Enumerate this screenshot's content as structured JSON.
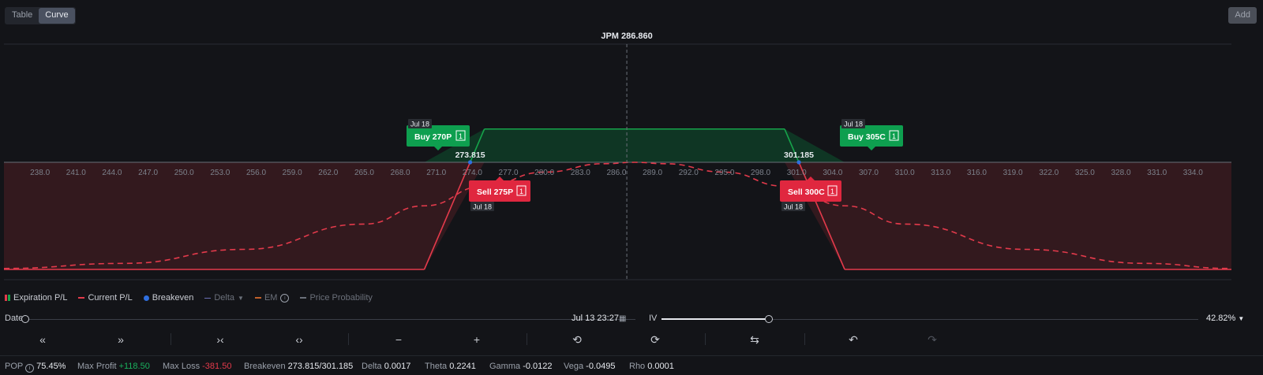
{
  "view_toggle": {
    "table_label": "Table",
    "curve_label": "Curve",
    "active": "Curve"
  },
  "add_label": "Add",
  "chart": {
    "underlying_label": "JPM 286.860",
    "x_ticks": [
      "238.0",
      "241.0",
      "244.0",
      "247.0",
      "250.0",
      "253.0",
      "256.0",
      "259.0",
      "262.0",
      "265.0",
      "268.0",
      "271.0",
      "274.0",
      "277.0",
      "280.0",
      "283.0",
      "286.0",
      "289.0",
      "292.0",
      "295.0",
      "298.0",
      "301.0",
      "304.0",
      "307.0",
      "310.0",
      "313.0",
      "316.0",
      "319.0",
      "322.0",
      "325.0",
      "328.0",
      "331.0",
      "334.0"
    ],
    "breakeven_left": "273.815",
    "breakeven_right": "301.185",
    "legs": [
      {
        "label": "Buy 270P",
        "qty": "1",
        "date": "Jul 18",
        "side": "buy"
      },
      {
        "label": "Buy 305C",
        "qty": "1",
        "date": "Jul 18",
        "side": "buy"
      },
      {
        "label": "Sell 275P",
        "qty": "1",
        "date": "Jul 18",
        "side": "sell"
      },
      {
        "label": "Sell 300C",
        "qty": "1",
        "date": "Jul 18",
        "side": "sell"
      }
    ],
    "colors": {
      "profit": "#16a34a",
      "loss": "#e33a4b",
      "breakeven": "#2f6fe0",
      "background": "#131418"
    }
  },
  "chart_data": {
    "type": "line",
    "xlim": [
      235.0,
      337.2
    ],
    "x_axis_ticks": [
      238,
      241,
      244,
      247,
      250,
      253,
      256,
      259,
      262,
      265,
      268,
      271,
      274,
      277,
      280,
      283,
      286,
      289,
      292,
      295,
      298,
      301,
      304,
      307,
      310,
      313,
      316,
      319,
      322,
      325,
      328,
      331,
      334
    ],
    "series": [
      {
        "name": "Expiration P/L",
        "x": [
          235.0,
          270.0,
          275.0,
          300.0,
          305.0,
          337.2
        ],
        "y": [
          -381.5,
          -381.5,
          118.5,
          118.5,
          -381.5,
          -381.5
        ]
      },
      {
        "name": "Current P/L",
        "x": [
          235.0,
          245.0,
          255.0,
          265.0,
          270.0,
          275.0,
          280.0,
          285.0,
          287.5,
          290.0,
          295.0,
          300.0,
          305.0,
          310.0,
          320.0,
          330.0,
          337.2
        ],
        "y": [
          -378,
          -360,
          -310,
          -220,
          -155,
          -85,
          -35,
          -5,
          0,
          -5,
          -35,
          -85,
          -155,
          -220,
          -310,
          -360,
          -378
        ]
      }
    ],
    "breakevens": [
      273.815,
      301.185
    ],
    "underlying_price": 286.86
  },
  "legend": {
    "expiration": "Expiration P/L",
    "current": "Current P/L",
    "breakeven": "Breakeven",
    "delta": "Delta",
    "em": "EM",
    "probability": "Price Probability"
  },
  "date_row": {
    "label": "Date",
    "value": "Jul 13 23:27",
    "iv_label": "IV",
    "iv_value": "42.82%",
    "iv_fraction": 0.2
  },
  "toolbar": [
    {
      "name": "scroll-left-far",
      "glyph": "«"
    },
    {
      "name": "scroll-right-far",
      "glyph": "»"
    },
    {
      "name": "zoom-in-range",
      "glyph": "›‹"
    },
    {
      "name": "zoom-out-range",
      "glyph": "‹›"
    },
    {
      "name": "zoom-minus",
      "glyph": "−"
    },
    {
      "name": "zoom-plus",
      "glyph": "+"
    },
    {
      "name": "history-back",
      "glyph": "⟲"
    },
    {
      "name": "history-forward",
      "glyph": "⟳"
    },
    {
      "name": "swap",
      "glyph": "⇆"
    },
    {
      "name": "undo",
      "glyph": "↶"
    },
    {
      "name": "redo",
      "glyph": "↷"
    }
  ],
  "stats": {
    "pop_label": "POP",
    "pop_value": "75.45%",
    "max_profit_label": "Max Profit",
    "max_profit_value": "+118.50",
    "max_loss_label": "Max Loss",
    "max_loss_value": "-381.50",
    "breakeven_label": "Breakeven",
    "breakeven_value": "273.815/301.185",
    "delta_label": "Delta",
    "delta_value": "0.0017",
    "theta_label": "Theta",
    "theta_value": "0.2241",
    "gamma_label": "Gamma",
    "gamma_value": "-0.0122",
    "vega_label": "Vega",
    "vega_value": "-0.0495",
    "rho_label": "Rho",
    "rho_value": "0.0001"
  }
}
